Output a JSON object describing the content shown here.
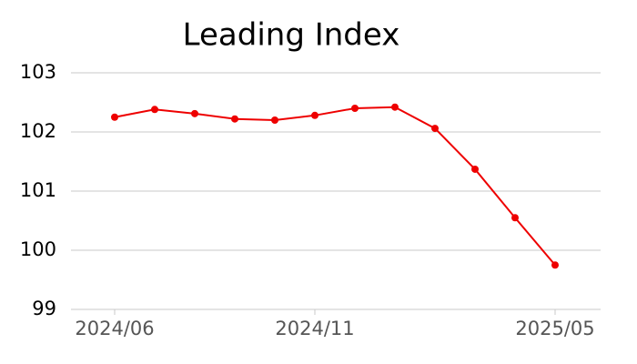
{
  "chart_data": {
    "type": "line",
    "title": "Leading Index",
    "categories": [
      "2024/06",
      null,
      null,
      null,
      null,
      "2024/11",
      null,
      null,
      null,
      null,
      null,
      "2025/05"
    ],
    "series": [
      {
        "name": "Leading Index",
        "color": "#ee0000",
        "values": [
          102.25,
          102.38,
          102.31,
          102.22,
          102.2,
          102.28,
          102.4,
          102.42,
          102.06,
          101.37,
          100.55,
          99.75
        ]
      }
    ],
    "ylim": [
      99,
      103
    ],
    "yticks": [
      99,
      100,
      101,
      102,
      103
    ],
    "grid": true
  }
}
